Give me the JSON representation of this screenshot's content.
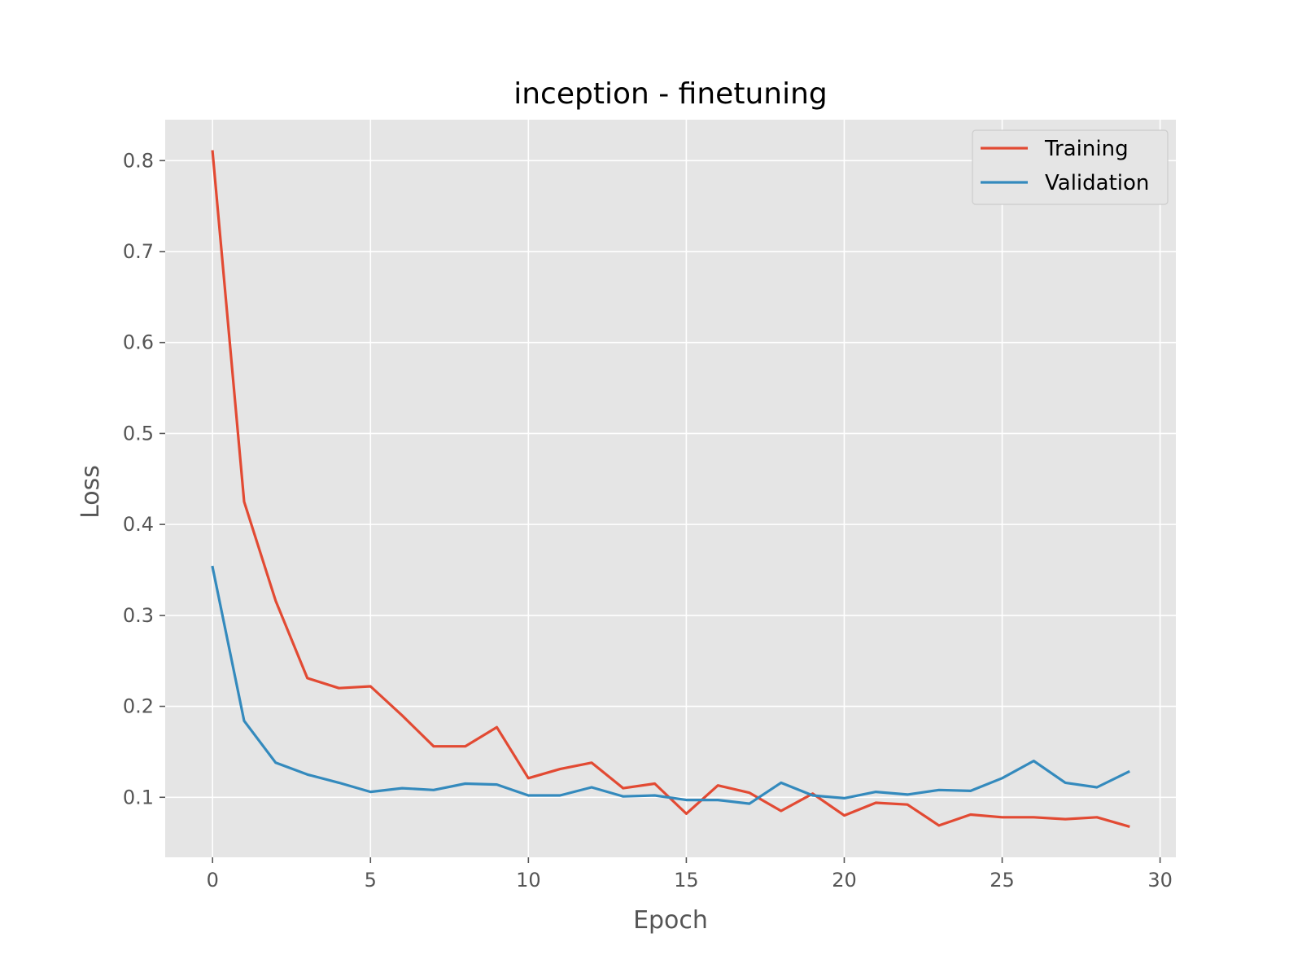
{
  "chart_data": {
    "type": "line",
    "title": "inception - finetuning",
    "xlabel": "Epoch",
    "ylabel": "Loss",
    "xlim": [
      -1.5,
      30.5
    ],
    "ylim": [
      0.034,
      0.845
    ],
    "xticks": [
      0,
      5,
      10,
      15,
      20,
      25,
      30
    ],
    "xtick_labels": [
      "0",
      "5",
      "10",
      "15",
      "20",
      "25",
      "30"
    ],
    "yticks": [
      0.1,
      0.2,
      0.3,
      0.4,
      0.5,
      0.6,
      0.7,
      0.8
    ],
    "ytick_labels": [
      "0.1",
      "0.2",
      "0.3",
      "0.4",
      "0.5",
      "0.6",
      "0.7",
      "0.8"
    ],
    "grid": true,
    "legend_position": "top-right",
    "x": [
      0,
      1,
      2,
      3,
      4,
      5,
      6,
      7,
      8,
      9,
      10,
      11,
      12,
      13,
      14,
      15,
      16,
      17,
      18,
      19,
      20,
      21,
      22,
      23,
      24,
      25,
      26,
      27,
      28,
      29
    ],
    "series": [
      {
        "name": "Training",
        "color": "#E24A33",
        "values": [
          0.81,
          0.425,
          0.316,
          0.231,
          0.22,
          0.222,
          0.19,
          0.156,
          0.156,
          0.177,
          0.121,
          0.131,
          0.138,
          0.11,
          0.115,
          0.082,
          0.113,
          0.105,
          0.085,
          0.104,
          0.08,
          0.094,
          0.092,
          0.069,
          0.081,
          0.078,
          0.078,
          0.076,
          0.078,
          0.068
        ]
      },
      {
        "name": "Validation",
        "color": "#348ABD",
        "values": [
          0.353,
          0.184,
          0.138,
          0.125,
          0.116,
          0.106,
          0.11,
          0.108,
          0.115,
          0.114,
          0.102,
          0.102,
          0.111,
          0.101,
          0.102,
          0.097,
          0.097,
          0.093,
          0.116,
          0.102,
          0.099,
          0.106,
          0.103,
          0.108,
          0.107,
          0.121,
          0.14,
          0.116,
          0.111,
          0.128
        ]
      }
    ]
  }
}
